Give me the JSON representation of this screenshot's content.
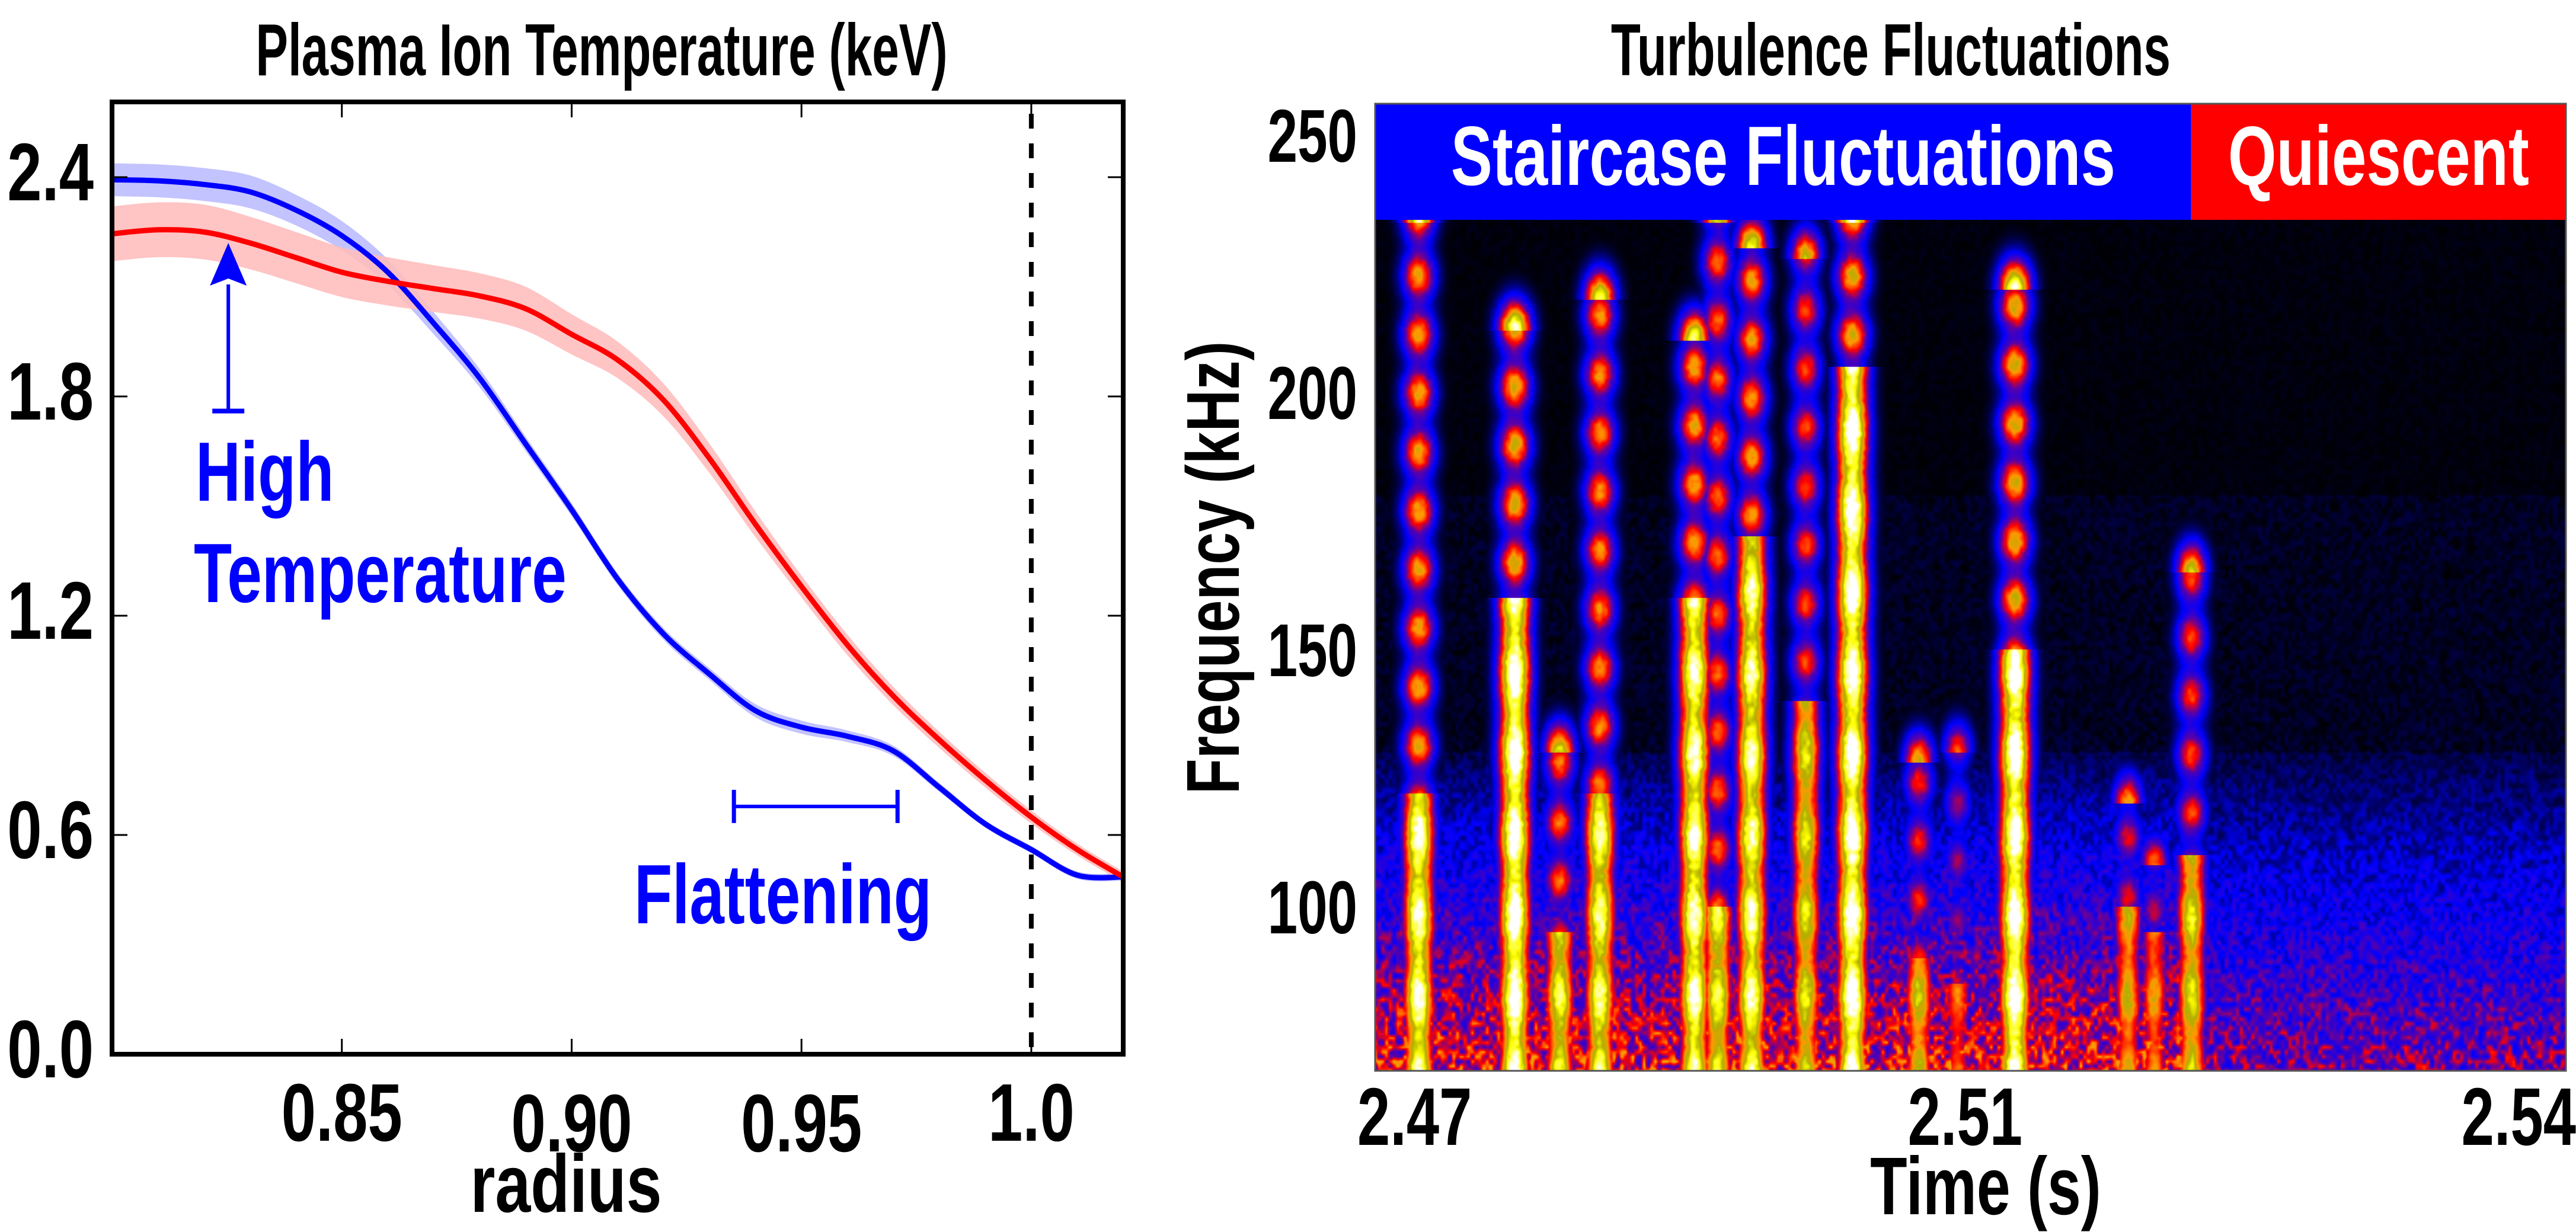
{
  "chart_data": [
    {
      "type": "line",
      "title": "Plasma Ion Temperature (keV)",
      "xlabel": "radius",
      "ylabel": "",
      "xlim": [
        0.8,
        1.02
      ],
      "ylim": [
        0.0,
        2.6
      ],
      "xticks": [
        0.85,
        0.9,
        0.95,
        1.0
      ],
      "xtick_labels": [
        "0.85",
        "0.90",
        "0.95",
        "1.0"
      ],
      "yticks": [
        0.0,
        0.6,
        1.2,
        1.8,
        2.4
      ],
      "ytick_labels": [
        "0.0",
        "0.6",
        "1.2",
        "1.8",
        "2.4"
      ],
      "grid": false,
      "vline": {
        "x": 1.0,
        "style": "dashed",
        "color": "#000000"
      },
      "series": [
        {
          "name": "staircase",
          "color": "#0000ff",
          "band_color": "#bcbcff",
          "x": [
            0.8,
            0.81,
            0.82,
            0.83,
            0.84,
            0.85,
            0.86,
            0.87,
            0.88,
            0.89,
            0.9,
            0.91,
            0.92,
            0.93,
            0.94,
            0.95,
            0.96,
            0.97,
            0.98,
            0.99,
            1.0,
            1.01,
            1.02
          ],
          "y": [
            2.393,
            2.39,
            2.38,
            2.36,
            2.31,
            2.24,
            2.14,
            2.0,
            1.85,
            1.67,
            1.49,
            1.3,
            1.15,
            1.04,
            0.94,
            0.895,
            0.87,
            0.83,
            0.73,
            0.63,
            0.56,
            0.49,
            0.485
          ],
          "band_halfwidth": [
            0.045,
            0.045,
            0.045,
            0.045,
            0.042,
            0.04,
            0.035,
            0.03,
            0.025,
            0.02,
            0.018,
            0.016,
            0.016,
            0.016,
            0.018,
            0.018,
            0.016,
            0.014,
            0.012,
            0.01,
            0.01,
            0.01,
            0.01
          ]
        },
        {
          "name": "quiescent",
          "color": "#ff0000",
          "band_color": "#ffbebe",
          "x": [
            0.8,
            0.81,
            0.82,
            0.83,
            0.84,
            0.85,
            0.86,
            0.87,
            0.88,
            0.89,
            0.9,
            0.91,
            0.92,
            0.93,
            0.94,
            0.95,
            0.96,
            0.97,
            0.98,
            0.99,
            1.0,
            1.01,
            1.02
          ],
          "y": [
            2.245,
            2.256,
            2.25,
            2.22,
            2.18,
            2.14,
            2.115,
            2.095,
            2.075,
            2.04,
            1.97,
            1.9,
            1.79,
            1.63,
            1.45,
            1.28,
            1.12,
            0.98,
            0.86,
            0.75,
            0.649,
            0.56,
            0.485
          ],
          "band_halfwidth": [
            0.075,
            0.075,
            0.075,
            0.072,
            0.07,
            0.068,
            0.066,
            0.064,
            0.062,
            0.06,
            0.055,
            0.05,
            0.045,
            0.04,
            0.035,
            0.03,
            0.028,
            0.025,
            0.022,
            0.02,
            0.018,
            0.016,
            0.015
          ]
        }
      ],
      "annotations": [
        {
          "text_lines": [
            "High",
            "Temperature"
          ],
          "color": "#0000ff",
          "arrow": {
            "x": 0.8253,
            "y_from": 1.76,
            "y_to": 2.22
          }
        },
        {
          "text_lines": [
            "Flattening"
          ],
          "color": "#0000ff",
          "span": {
            "x_from": 0.9353,
            "x_to": 0.9709,
            "y": 0.678
          }
        }
      ]
    },
    {
      "type": "heatmap",
      "title": "Turbulence Fluctuations",
      "xlabel": "Time (s)",
      "ylabel": "Frequency (kHz)",
      "xlim": [
        2.4669,
        2.5438
      ],
      "ylim": [
        68,
        256
      ],
      "data_ylim": [
        68,
        233.5
      ],
      "xticks": [
        2.47,
        2.505,
        2.54
      ],
      "xtick_labels": [
        "2.47",
        "2.51",
        "2.54"
      ],
      "yticks": [
        100,
        150,
        200,
        250
      ],
      "ytick_labels": [
        "100",
        "150",
        "200",
        "250"
      ],
      "colormap": [
        "#000000",
        "#0000ff",
        "#5a00a8",
        "#ff0000",
        "#ff9a00",
        "#b0b000",
        "#ffff00",
        "#ffffff"
      ],
      "regions": [
        {
          "label": "Staircase Fluctuations",
          "t_from": 2.4669,
          "t_to": 2.5196,
          "color": "#0000ff",
          "text_color": "#ffffff"
        },
        {
          "label": "Quiescent",
          "t_from": 2.5196,
          "t_to": 2.5438,
          "color": "#ff0000",
          "text_color": "#ffffff"
        }
      ],
      "bursts": [
        {
          "t": 2.4697,
          "f_top": 233,
          "f_bright": 122,
          "intensity": 0.95
        },
        {
          "t": 2.4759,
          "f_top": 212,
          "f_bright": 160,
          "intensity": 1.0
        },
        {
          "t": 2.4788,
          "f_top": 130,
          "f_bright": 95,
          "intensity": 0.85
        },
        {
          "t": 2.4814,
          "f_top": 218,
          "f_bright": 122,
          "intensity": 0.9
        },
        {
          "t": 2.4875,
          "f_top": 210,
          "f_bright": 160,
          "intensity": 0.95
        },
        {
          "t": 2.489,
          "f_top": 233,
          "f_bright": 100,
          "intensity": 0.85
        },
        {
          "t": 2.4912,
          "f_top": 228,
          "f_bright": 172,
          "intensity": 0.92
        },
        {
          "t": 2.4947,
          "f_top": 226,
          "f_bright": 140,
          "intensity": 0.8
        },
        {
          "t": 2.4977,
          "f_top": 233,
          "f_bright": 205,
          "intensity": 1.0
        },
        {
          "t": 2.502,
          "f_top": 128,
          "f_bright": 90,
          "intensity": 0.75
        },
        {
          "t": 2.5045,
          "f_top": 130,
          "f_bright": 85,
          "intensity": 0.6
        },
        {
          "t": 2.5082,
          "f_top": 220,
          "f_bright": 150,
          "intensity": 1.0
        },
        {
          "t": 2.5155,
          "f_top": 120,
          "f_bright": 100,
          "intensity": 0.7
        },
        {
          "t": 2.5172,
          "f_top": 108,
          "f_bright": 95,
          "intensity": 0.65
        },
        {
          "t": 2.5196,
          "f_top": 165,
          "f_bright": 110,
          "intensity": 0.8
        }
      ],
      "background": {
        "low_band_top_kHz": 95,
        "staircase_level": 0.55,
        "quiescent_level": 0.42
      }
    }
  ]
}
